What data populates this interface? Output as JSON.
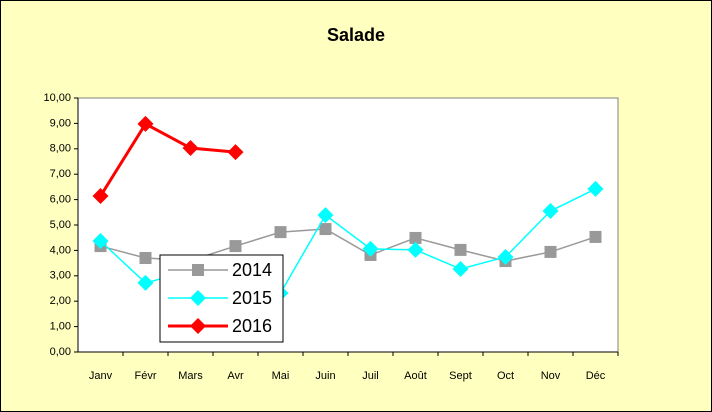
{
  "chart_data": {
    "type": "line",
    "title": "Salade",
    "categories": [
      "Janv",
      "Févr",
      "Mars",
      "Avr",
      "Mai",
      "Juin",
      "Juil",
      "Août",
      "Sept",
      "Oct",
      "Nov",
      "Déc"
    ],
    "series": [
      {
        "name": "2014",
        "color": "#999999",
        "marker": "square",
        "values": [
          4.17,
          3.7,
          3.6,
          4.17,
          4.72,
          4.84,
          3.82,
          4.49,
          4.02,
          3.58,
          3.94,
          4.53
        ]
      },
      {
        "name": "2015",
        "color": "#00ffff",
        "marker": "diamond",
        "values": [
          4.37,
          2.72,
          3.2,
          2.8,
          2.32,
          5.39,
          4.06,
          4.02,
          3.27,
          3.74,
          5.55,
          6.42
        ]
      },
      {
        "name": "2016",
        "color": "#ff0000",
        "marker": "diamond",
        "values": [
          6.14,
          8.98,
          8.03,
          7.87,
          null,
          null,
          null,
          null,
          null,
          null,
          null,
          null
        ]
      }
    ],
    "ylim": [
      0,
      10
    ],
    "yticks": [
      {
        "value": 0,
        "label": "0,00"
      },
      {
        "value": 1,
        "label": "1,00"
      },
      {
        "value": 2,
        "label": "2,00"
      },
      {
        "value": 3,
        "label": "3,00"
      },
      {
        "value": 4,
        "label": "4,00"
      },
      {
        "value": 5,
        "label": "5,00"
      },
      {
        "value": 6,
        "label": "6,00"
      },
      {
        "value": 7,
        "label": "7,00"
      },
      {
        "value": 8,
        "label": "8,00"
      },
      {
        "value": 9,
        "label": "9,00"
      },
      {
        "value": 10,
        "label": "10,00"
      }
    ],
    "grid": false,
    "legend": "lower-left"
  }
}
